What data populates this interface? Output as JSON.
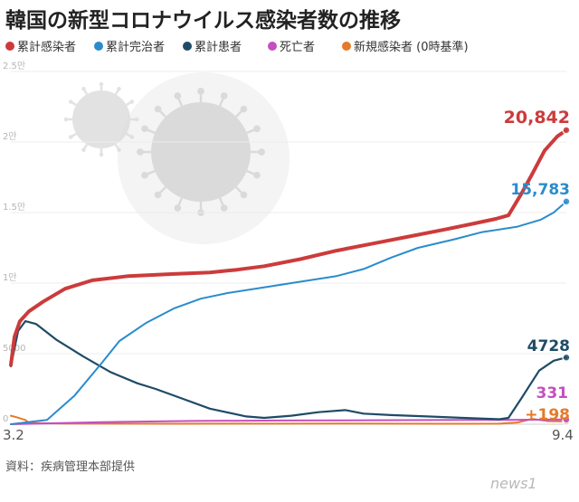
{
  "chart_data": {
    "type": "line",
    "title": "韓国の新型コロナウイルス感染者数の推移",
    "x_start_label": "3.2",
    "x_end_label": "9.4",
    "yticks": [
      {
        "value": 0,
        "label": "0"
      },
      {
        "value": 5000,
        "label": "5000"
      },
      {
        "value": 10000,
        "label": "1만"
      },
      {
        "value": 15000,
        "label": "1.5만"
      },
      {
        "value": 20000,
        "label": "2만"
      },
      {
        "value": 25000,
        "label": "2.5만"
      }
    ],
    "ylim": [
      0,
      25000
    ],
    "grid": true,
    "legend_position": "top-left",
    "series": [
      {
        "name": "累計感染者",
        "color": "#cc3b3b",
        "end_label": "20,842",
        "points": [
          [
            0,
            4200
          ],
          [
            2,
            6200
          ],
          [
            5,
            7300
          ],
          [
            10,
            8000
          ],
          [
            18,
            8700
          ],
          [
            30,
            9600
          ],
          [
            45,
            10200
          ],
          [
            65,
            10500
          ],
          [
            90,
            10650
          ],
          [
            110,
            10750
          ],
          [
            125,
            10950
          ],
          [
            140,
            11200
          ],
          [
            160,
            11700
          ],
          [
            180,
            12300
          ],
          [
            200,
            12800
          ],
          [
            220,
            13300
          ],
          [
            240,
            13800
          ],
          [
            255,
            14200
          ],
          [
            268,
            14550
          ],
          [
            275,
            14800
          ],
          [
            282,
            16300
          ],
          [
            288,
            17700
          ],
          [
            295,
            19400
          ],
          [
            302,
            20400
          ],
          [
            307,
            20842
          ]
        ]
      },
      {
        "name": "累計完治者",
        "color": "#2a8ccc",
        "end_label": "15,783",
        "points": [
          [
            0,
            0
          ],
          [
            20,
            300
          ],
          [
            35,
            2000
          ],
          [
            50,
            4300
          ],
          [
            60,
            5900
          ],
          [
            75,
            7200
          ],
          [
            90,
            8200
          ],
          [
            105,
            8900
          ],
          [
            120,
            9300
          ],
          [
            135,
            9600
          ],
          [
            155,
            10000
          ],
          [
            180,
            10500
          ],
          [
            195,
            11000
          ],
          [
            210,
            11800
          ],
          [
            225,
            12500
          ],
          [
            245,
            13100
          ],
          [
            260,
            13600
          ],
          [
            280,
            14000
          ],
          [
            293,
            14500
          ],
          [
            300,
            15000
          ],
          [
            307,
            15783
          ]
        ]
      },
      {
        "name": "累計患者",
        "color": "#1f4b66",
        "end_label": "4728",
        "points": [
          [
            0,
            4100
          ],
          [
            4,
            6600
          ],
          [
            8,
            7300
          ],
          [
            14,
            7100
          ],
          [
            25,
            6000
          ],
          [
            40,
            4800
          ],
          [
            55,
            3700
          ],
          [
            70,
            2900
          ],
          [
            80,
            2500
          ],
          [
            95,
            1800
          ],
          [
            110,
            1100
          ],
          [
            130,
            550
          ],
          [
            140,
            450
          ],
          [
            155,
            600
          ],
          [
            170,
            850
          ],
          [
            185,
            1000
          ],
          [
            195,
            750
          ],
          [
            210,
            650
          ],
          [
            230,
            550
          ],
          [
            250,
            450
          ],
          [
            270,
            350
          ],
          [
            275,
            450
          ],
          [
            282,
            1800
          ],
          [
            292,
            3800
          ],
          [
            300,
            4500
          ],
          [
            307,
            4728
          ]
        ]
      },
      {
        "name": "死亡者",
        "color": "#c44fc0",
        "end_label": "331",
        "points": [
          [
            0,
            0
          ],
          [
            50,
            150
          ],
          [
            100,
            230
          ],
          [
            150,
            260
          ],
          [
            200,
            280
          ],
          [
            250,
            300
          ],
          [
            275,
            310
          ],
          [
            290,
            320
          ],
          [
            300,
            330
          ],
          [
            307,
            331
          ]
        ]
      },
      {
        "name": "新規感染者 (0時基準)",
        "color": "#e57a2a",
        "end_label": "+198",
        "points": [
          [
            0,
            600
          ],
          [
            3,
            500
          ],
          [
            8,
            300
          ],
          [
            10,
            80
          ],
          [
            30,
            50
          ],
          [
            60,
            40
          ],
          [
            90,
            30
          ],
          [
            120,
            40
          ],
          [
            150,
            40
          ],
          [
            180,
            50
          ],
          [
            210,
            40
          ],
          [
            240,
            30
          ],
          [
            270,
            40
          ],
          [
            280,
            120
          ],
          [
            288,
            380
          ],
          [
            297,
            220
          ],
          [
            307,
            198
          ]
        ]
      }
    ]
  },
  "source": "資料：疾病管理本部提供",
  "watermark": "news1"
}
